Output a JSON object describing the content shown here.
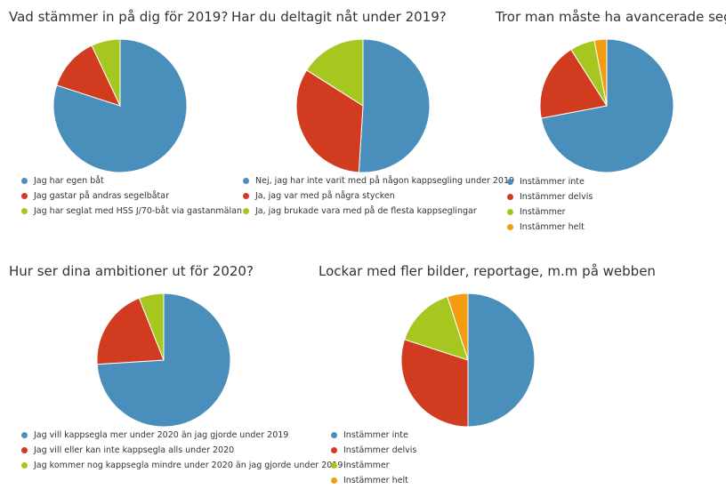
{
  "chart_data": [
    {
      "type": "pie",
      "title": "Vad stämmer in på dig för 2019?",
      "categories": [
        "Jag har egen båt",
        "Jag gastar på andras segelbåtar",
        "Jag har seglat med HSS J/70-båt via gastanmälan"
      ],
      "values": [
        80,
        13,
        7
      ],
      "colors": [
        "#4a8fbb",
        "#d13b1f",
        "#a6c620"
      ]
    },
    {
      "type": "pie",
      "title": "Har du deltagit nåt under 2019?",
      "categories": [
        "Nej, jag har inte varit med på någon kappsegling under 2019",
        "Ja, jag var med på några stycken",
        "Ja, jag brukade vara med på de flesta kappseglingar"
      ],
      "values": [
        51,
        33,
        16
      ],
      "colors": [
        "#4a8fbb",
        "#d13b1f",
        "#a6c620"
      ]
    },
    {
      "type": "pie",
      "title": "Tror man måste ha avancerade segel",
      "categories": [
        "Instämmer inte",
        "Instämmer delvis",
        "Instämmer",
        "Instämmer helt"
      ],
      "values": [
        72,
        19,
        6,
        3
      ],
      "colors": [
        "#4a8fbb",
        "#d13b1f",
        "#a6c620",
        "#f39c12"
      ]
    },
    {
      "type": "pie",
      "title": "Hur ser dina ambitioner ut för 2020?",
      "categories": [
        "Jag vill kappsegla mer under 2020 än jag gjorde under 2019",
        "Jag vill eller kan inte kappsegla alls under 2020",
        "Jag kommer nog kappsegla mindre under 2020 än jag gjorde under 2019"
      ],
      "values": [
        74,
        20,
        6
      ],
      "colors": [
        "#4a8fbb",
        "#d13b1f",
        "#a6c620"
      ]
    },
    {
      "type": "pie",
      "title": "Lockar med fler bilder, reportage, m.m på webben",
      "categories": [
        "Instämmer inte",
        "Instämmer delvis",
        "Instämmer",
        "Instämmer helt"
      ],
      "values": [
        50,
        30,
        15,
        5
      ],
      "colors": [
        "#4a8fbb",
        "#d13b1f",
        "#a6c620",
        "#f39c12"
      ]
    }
  ]
}
